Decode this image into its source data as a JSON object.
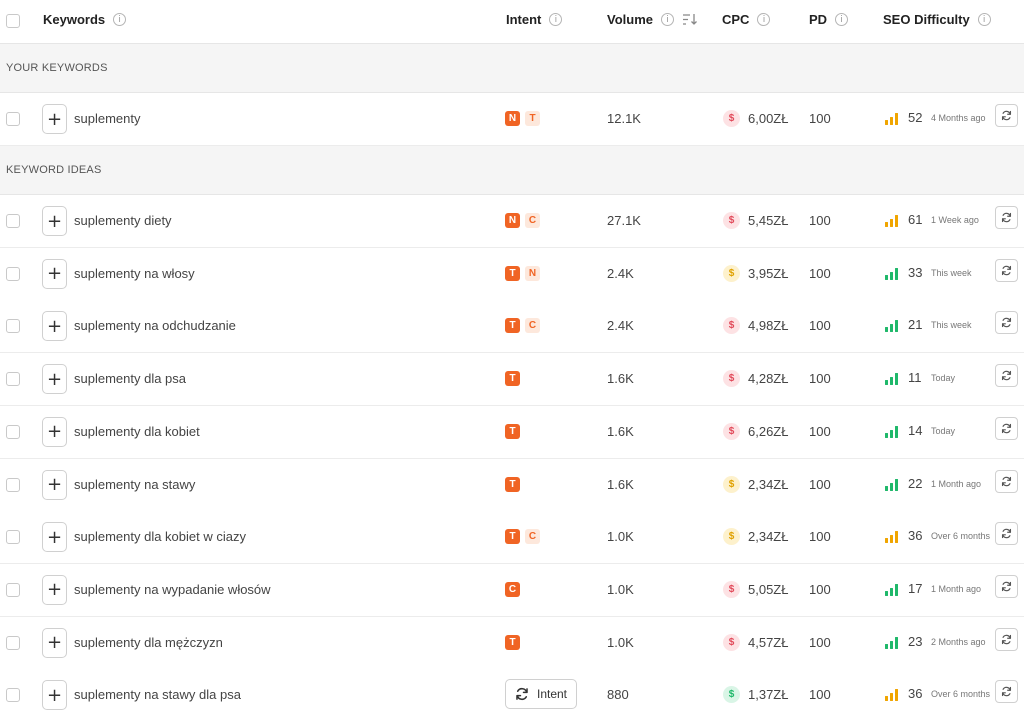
{
  "columns": {
    "keywords": "Keywords",
    "intent": "Intent",
    "volume": "Volume",
    "cpc": "CPC",
    "pd": "PD",
    "seo_difficulty": "SEO Difficulty",
    "info_glyph": "i"
  },
  "sections": {
    "your_keywords": "YOUR KEYWORDS",
    "keyword_ideas": "KEYWORD IDEAS"
  },
  "add_glyph": "+",
  "dollar_glyph": "$",
  "intent_button_label": "Intent",
  "colors": {
    "intent_accent": "#f06424",
    "cpc_high": "#e14a5a",
    "cpc_mid": "#e0a100",
    "cpc_low": "#1fb86a",
    "difficulty_easy": "#1fb86a",
    "difficulty_medium": "#f0a500"
  },
  "your_keywords": [
    {
      "keyword": "suplementy",
      "intent": [
        {
          "t": "N",
          "s": "solid"
        },
        {
          "t": "T",
          "s": "light"
        }
      ],
      "volume": "12.1K",
      "cpc": "6,00ZŁ",
      "cpc_level": "red",
      "pd": "100",
      "difficulty": "52",
      "difficulty_level": "medium",
      "updated": "4 Months ago"
    }
  ],
  "keyword_ideas": [
    {
      "keyword": "suplementy diety",
      "intent": [
        {
          "t": "N",
          "s": "solid"
        },
        {
          "t": "C",
          "s": "light"
        }
      ],
      "volume": "27.1K",
      "cpc": "5,45ZŁ",
      "cpc_level": "red",
      "pd": "100",
      "difficulty": "61",
      "difficulty_level": "medium",
      "updated": "1 Week ago"
    },
    {
      "keyword": "suplementy na włosy",
      "intent": [
        {
          "t": "T",
          "s": "solid"
        },
        {
          "t": "N",
          "s": "light"
        }
      ],
      "volume": "2.4K",
      "cpc": "3,95ZŁ",
      "cpc_level": "yellow",
      "pd": "100",
      "difficulty": "33",
      "difficulty_level": "easy",
      "updated": "This week"
    },
    {
      "keyword": "suplementy na odchudzanie",
      "intent": [
        {
          "t": "T",
          "s": "solid"
        },
        {
          "t": "C",
          "s": "light"
        }
      ],
      "volume": "2.4K",
      "cpc": "4,98ZŁ",
      "cpc_level": "red",
      "pd": "100",
      "difficulty": "21",
      "difficulty_level": "easy",
      "updated": "This week"
    },
    {
      "keyword": "suplementy dla psa",
      "intent": [
        {
          "t": "T",
          "s": "solid"
        }
      ],
      "volume": "1.6K",
      "cpc": "4,28ZŁ",
      "cpc_level": "red",
      "pd": "100",
      "difficulty": "11",
      "difficulty_level": "easy",
      "updated": "Today"
    },
    {
      "keyword": "suplementy dla kobiet",
      "intent": [
        {
          "t": "T",
          "s": "solid"
        }
      ],
      "volume": "1.6K",
      "cpc": "6,26ZŁ",
      "cpc_level": "red",
      "pd": "100",
      "difficulty": "14",
      "difficulty_level": "easy",
      "updated": "Today"
    },
    {
      "keyword": "suplementy na stawy",
      "intent": [
        {
          "t": "T",
          "s": "solid"
        }
      ],
      "volume": "1.6K",
      "cpc": "2,34ZŁ",
      "cpc_level": "yellow",
      "pd": "100",
      "difficulty": "22",
      "difficulty_level": "easy",
      "updated": "1 Month ago"
    },
    {
      "keyword": "suplementy dla kobiet w ciazy",
      "intent": [
        {
          "t": "T",
          "s": "solid"
        },
        {
          "t": "C",
          "s": "light"
        }
      ],
      "volume": "1.0K",
      "cpc": "2,34ZŁ",
      "cpc_level": "yellow",
      "pd": "100",
      "difficulty": "36",
      "difficulty_level": "medium",
      "updated": "Over 6 months"
    },
    {
      "keyword": "suplementy na wypadanie włosów",
      "intent": [
        {
          "t": "C",
          "s": "solid"
        }
      ],
      "volume": "1.0K",
      "cpc": "5,05ZŁ",
      "cpc_level": "red",
      "pd": "100",
      "difficulty": "17",
      "difficulty_level": "easy",
      "updated": "1 Month ago"
    },
    {
      "keyword": "suplementy dla mężczyzn",
      "intent": [
        {
          "t": "T",
          "s": "solid"
        }
      ],
      "volume": "1.0K",
      "cpc": "4,57ZŁ",
      "cpc_level": "red",
      "pd": "100",
      "difficulty": "23",
      "difficulty_level": "easy",
      "updated": "2 Months ago"
    },
    {
      "keyword": "suplementy na stawy dla psa",
      "intent": [],
      "intent_button": true,
      "volume": "880",
      "cpc": "1,37ZŁ",
      "cpc_level": "green",
      "pd": "100",
      "difficulty": "36",
      "difficulty_level": "medium",
      "updated": "Over 6 months"
    }
  ]
}
